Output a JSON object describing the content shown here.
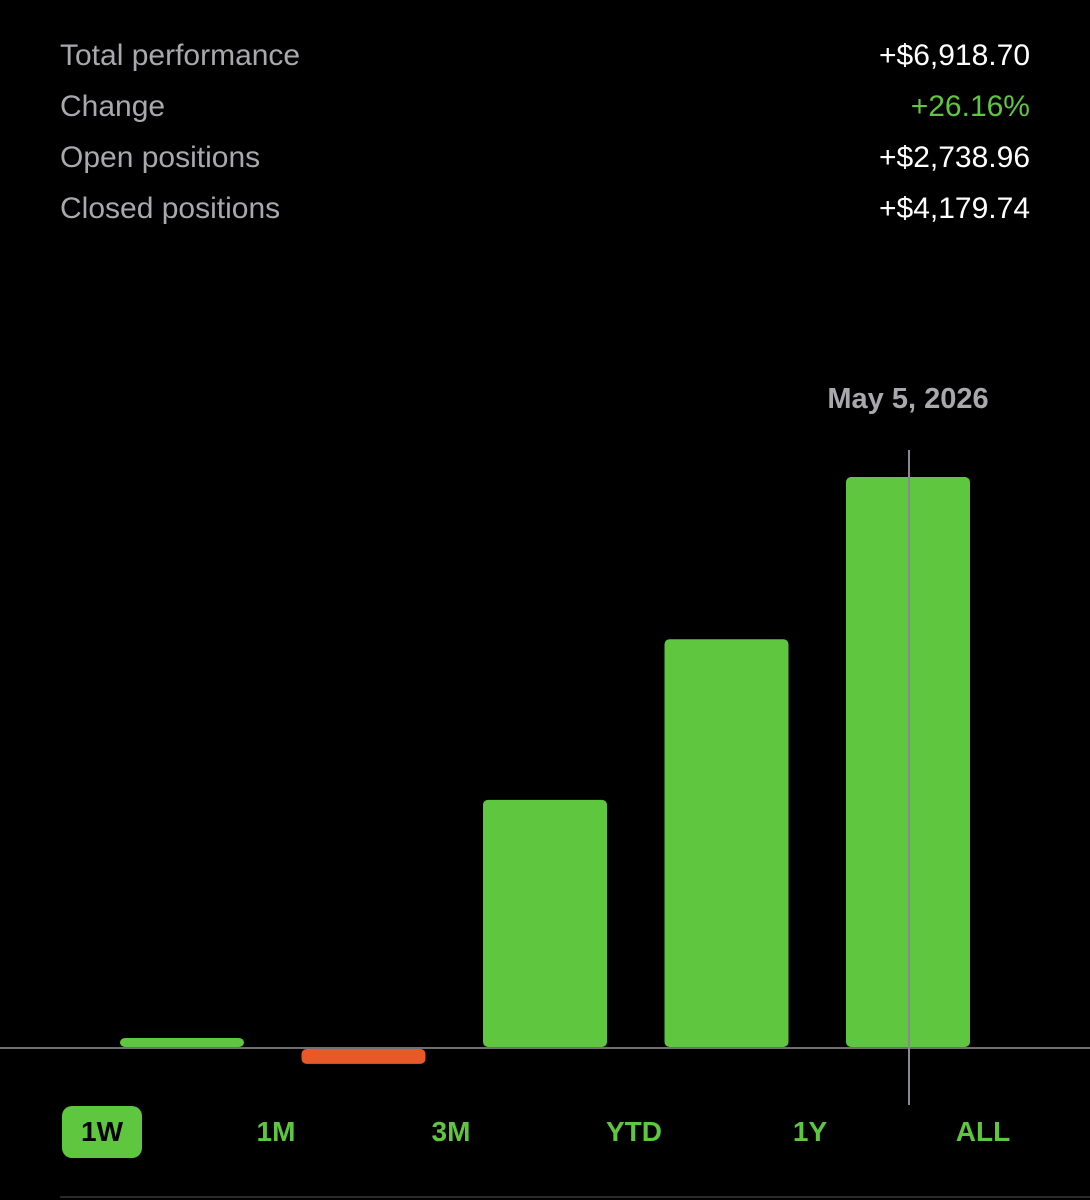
{
  "summary": {
    "rows": [
      {
        "label": "Total performance",
        "value": "+$6,918.70"
      },
      {
        "label": "Change",
        "value": "+26.16%"
      },
      {
        "label": "Open positions",
        "value": "+$2,738.96"
      },
      {
        "label": "Closed positions",
        "value": "+$4,179.74"
      }
    ]
  },
  "chart_data": {
    "type": "bar",
    "selected_label": "May 5, 2026",
    "selected_index": 4,
    "values": [
      110,
      -180,
      3000,
      4950,
      6918.7
    ],
    "colors": {
      "positive": "#5ec63f",
      "negative": "#e8592a",
      "baseline": "#6e6e72",
      "cursor": "#8a8a8e"
    },
    "grid": false,
    "ylim": [
      -400,
      7000
    ]
  },
  "ranges": {
    "active_index": 0,
    "items": [
      "1W",
      "1M",
      "3M",
      "YTD",
      "1Y",
      "ALL"
    ]
  },
  "colors": {
    "background": "#000000",
    "label": "#a9a9ad",
    "accent": "#5ec63f"
  }
}
